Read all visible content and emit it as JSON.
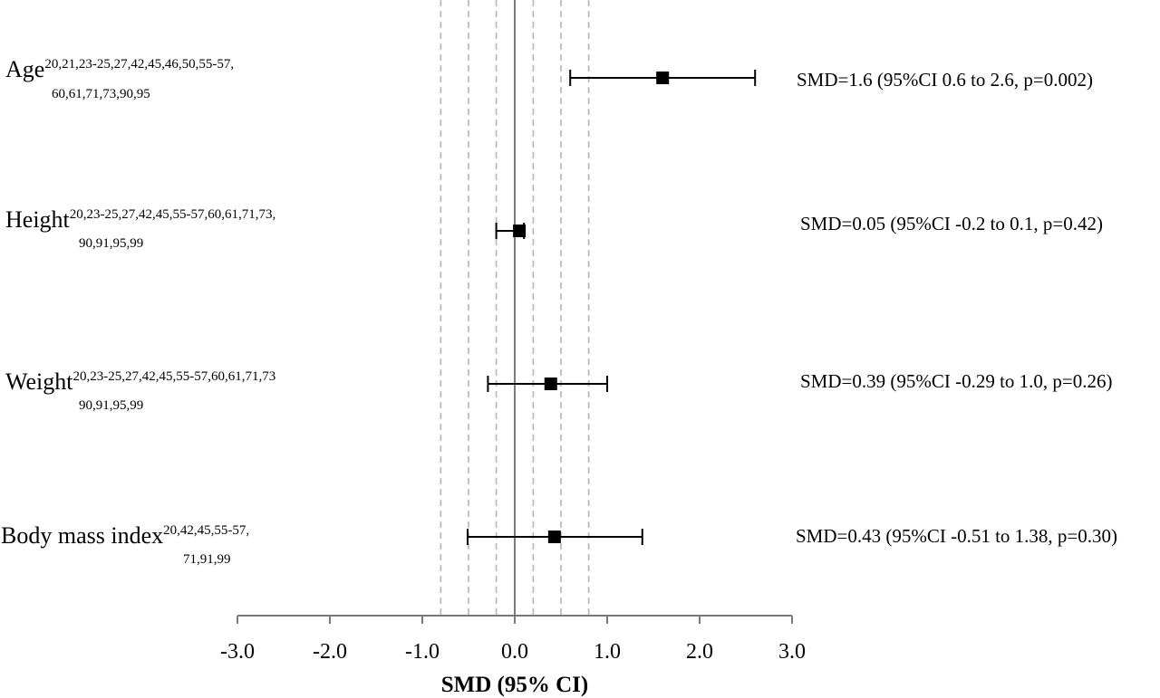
{
  "chart_data": {
    "type": "forest",
    "xlabel": "SMD (95% CI)",
    "xlim": [
      -3.0,
      3.0
    ],
    "ticks": [
      -3.0,
      -2.0,
      -1.0,
      0.0,
      1.0,
      2.0,
      3.0
    ],
    "tick_labels": [
      "-3.0",
      "-2.0",
      "-1.0",
      "0.0",
      "1.0",
      "2.0",
      "3.0"
    ],
    "reference_lines": [
      -0.8,
      -0.5,
      -0.2,
      0.2,
      0.5,
      0.8
    ],
    "zero_line": 0.0,
    "rows": [
      {
        "label": "Age",
        "refs_line1": "20,21,23-25,27,42,45,46,50,55-57,",
        "refs_line2": "60,61,71,73,90,95",
        "smd": 1.6,
        "ci_low": 0.6,
        "ci_high": 2.6,
        "text": "SMD=1.6 (95%CI 0.6 to 2.6, p=0.002)"
      },
      {
        "label": "Height",
        "refs_line1": "20,23-25,27,42,45,55-57,60,61,71,73,",
        "refs_line2": "90,91,95,99",
        "smd": 0.05,
        "ci_low": -0.2,
        "ci_high": 0.1,
        "text": "SMD=0.05 (95%CI -0.2 to 0.1, p=0.42)"
      },
      {
        "label": "Weight",
        "refs_line1": "20,23-25,27,42,45,55-57,60,61,71,73",
        "refs_line2": "90,91,95,99",
        "smd": 0.39,
        "ci_low": -0.29,
        "ci_high": 1.0,
        "text": "SMD=0.39 (95%CI -0.29 to 1.0, p=0.26)"
      },
      {
        "label": "Body mass index",
        "refs_line1": "20,42,45,55-57,",
        "refs_line2": "71,91,99",
        "smd": 0.43,
        "ci_low": -0.51,
        "ci_high": 1.38,
        "text": "SMD=0.43 (95%CI -0.51 to 1.38, p=0.30)"
      }
    ]
  }
}
